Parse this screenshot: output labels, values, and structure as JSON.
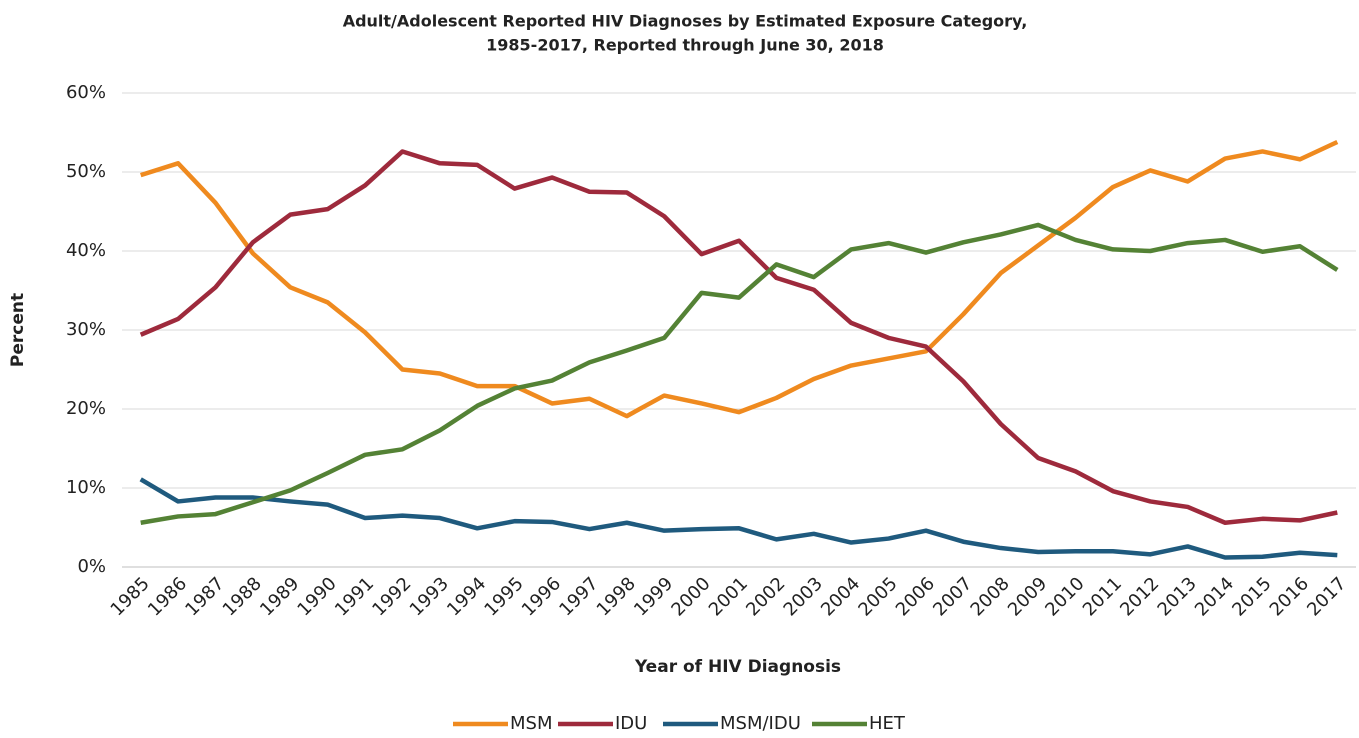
{
  "chart_data": {
    "type": "line",
    "title": [
      "Adult/Adolescent Reported HIV Diagnoses by Estimated Exposure Category,",
      "1985-2017, Reported through June 30, 2018"
    ],
    "x_label": "Year of HIV Diagnosis",
    "y_label": "Percent",
    "categories": [
      "1985",
      "1986",
      "1987",
      "1988",
      "1989",
      "1990",
      "1991",
      "1992",
      "1993",
      "1994",
      "1995",
      "1996",
      "1997",
      "1998",
      "1999",
      "2000",
      "2001",
      "2002",
      "2003",
      "2004",
      "2005",
      "2006",
      "2007",
      "2008",
      "2009",
      "2010",
      "2011",
      "2012",
      "2013",
      "2014",
      "2015",
      "2016",
      "2017"
    ],
    "series": [
      {
        "name": "MSM",
        "color": "#ef8a1f",
        "values": [
          49.6,
          51.1,
          46.1,
          39.7,
          35.4,
          33.5,
          29.7,
          25.0,
          24.5,
          22.9,
          22.9,
          20.7,
          21.3,
          19.1,
          21.7,
          20.7,
          19.6,
          21.4,
          23.8,
          25.5,
          26.4,
          27.3,
          32.0,
          37.2,
          40.7,
          44.2,
          48.1,
          50.2,
          48.8,
          51.7,
          52.6,
          51.6,
          53.8
        ]
      },
      {
        "name": "IDU",
        "color": "#9e2a3c",
        "values": [
          29.4,
          31.4,
          35.4,
          41.1,
          44.6,
          45.3,
          48.3,
          52.6,
          51.1,
          50.9,
          47.9,
          49.3,
          47.5,
          47.4,
          44.4,
          39.6,
          41.3,
          36.6,
          35.1,
          30.9,
          29.0,
          27.9,
          23.5,
          18.1,
          13.8,
          12.1,
          9.6,
          8.3,
          7.6,
          5.6,
          6.1,
          5.9,
          6.9
        ]
      },
      {
        "name": "MSM/IDU",
        "color": "#1f5a7e",
        "values": [
          11.1,
          8.3,
          8.8,
          8.8,
          8.3,
          7.9,
          6.2,
          6.5,
          6.2,
          4.9,
          5.8,
          5.7,
          4.8,
          5.6,
          4.6,
          4.8,
          4.9,
          3.5,
          4.2,
          3.1,
          3.6,
          4.6,
          3.2,
          2.4,
          1.9,
          2.0,
          2.0,
          1.6,
          2.6,
          1.2,
          1.3,
          1.8,
          1.5
        ]
      },
      {
        "name": "HET",
        "color": "#548235",
        "values": [
          5.6,
          6.4,
          6.7,
          8.2,
          9.7,
          11.9,
          14.2,
          14.9,
          17.3,
          20.4,
          22.6,
          23.6,
          25.9,
          27.4,
          29.0,
          34.7,
          34.1,
          38.3,
          36.7,
          40.2,
          41.0,
          39.8,
          41.1,
          42.1,
          43.3,
          41.4,
          40.2,
          40.0,
          41.0,
          41.4,
          39.9,
          40.6,
          37.6
        ]
      }
    ],
    "ylim": [
      0,
      60
    ],
    "yticks": [
      {
        "value": 0,
        "label": "0%"
      },
      {
        "value": 10,
        "label": "10%"
      },
      {
        "value": 20,
        "label": "20%"
      },
      {
        "value": 30,
        "label": "30%"
      },
      {
        "value": 40,
        "label": "40%"
      },
      {
        "value": 50,
        "label": "50%"
      },
      {
        "value": 60,
        "label": "60%"
      }
    ],
    "grid": true,
    "legend": "bottom"
  }
}
